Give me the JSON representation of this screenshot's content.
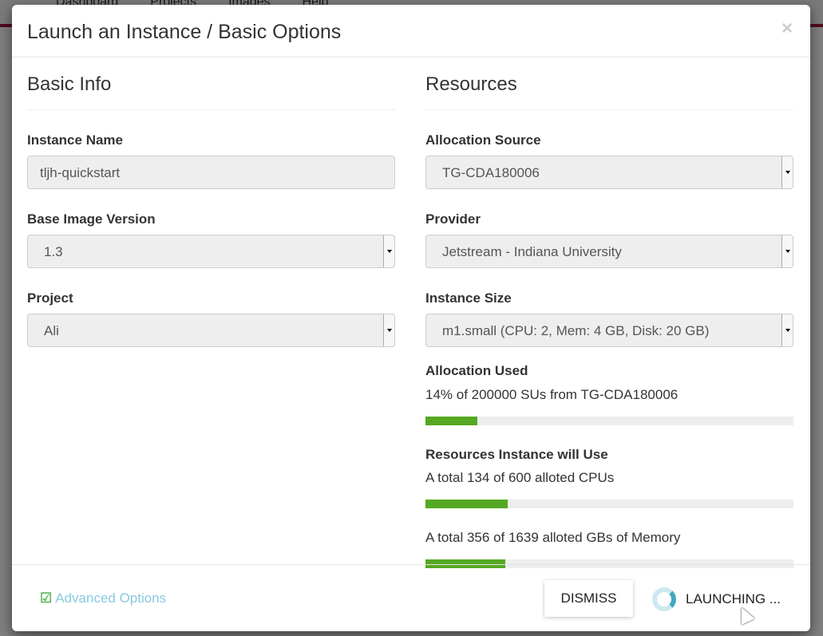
{
  "background": {
    "nav": [
      "Dashboard",
      "Projects",
      "Images",
      "Help"
    ]
  },
  "modal": {
    "title": "Launch an Instance / Basic Options",
    "close": "×",
    "basic_info": {
      "heading": "Basic Info",
      "instance_name": {
        "label": "Instance Name",
        "value": "tljh-quickstart"
      },
      "base_image_version": {
        "label": "Base Image Version",
        "value": "1.3"
      },
      "project": {
        "label": "Project",
        "value": "Ali"
      }
    },
    "resources": {
      "heading": "Resources",
      "allocation_source": {
        "label": "Allocation Source",
        "value": "TG-CDA180006"
      },
      "provider": {
        "label": "Provider",
        "value": "Jetstream - Indiana University"
      },
      "instance_size": {
        "label": "Instance Size",
        "value": "m1.small (CPU: 2, Mem: 4 GB, Disk: 20 GB)"
      },
      "allocation_used": {
        "label": "Allocation Used",
        "text": "14% of 200000 SUs from TG-CDA180006",
        "percent": 14
      },
      "will_use": {
        "label": "Resources Instance will Use",
        "cpus": {
          "text": "A total 134 of 600 alloted CPUs",
          "percent": 22.3
        },
        "memory": {
          "text": "A total 356 of 1639 alloted GBs of Memory",
          "percent": 21.7
        }
      }
    },
    "footer": {
      "advanced_options": "Advanced Options",
      "dismiss": "DISMISS",
      "launching": "LAUNCHING ..."
    },
    "colors": {
      "bar_fill": "#55a821",
      "bar_track": "#eeeeee",
      "link": "#87c9de",
      "check": "#5cb85c"
    }
  }
}
